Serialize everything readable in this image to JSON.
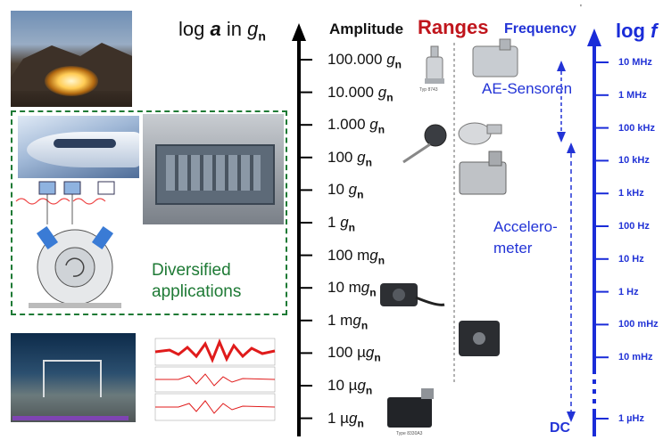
{
  "left_axis": {
    "title_prefix": "log ",
    "title_var": "a",
    "title_mid": " in ",
    "title_unit": "g",
    "title_sub": "n"
  },
  "headers": {
    "amplitude": "Amplitude",
    "ranges": "Ranges",
    "frequency": "Frequency",
    "logf_prefix": "log ",
    "logf_var": "f",
    "corner_mark": "'"
  },
  "amplitude_ticks": [
    {
      "value": "100.000 ",
      "unit": "g",
      "sub": "n"
    },
    {
      "value": "10.000 ",
      "unit": "g",
      "sub": "n"
    },
    {
      "value": "1.000 ",
      "unit": "g",
      "sub": "n"
    },
    {
      "value": "100 ",
      "unit": "g",
      "sub": "n"
    },
    {
      "value": "10 ",
      "unit": "g",
      "sub": "n"
    },
    {
      "value": "1 ",
      "unit": "g",
      "sub": "n"
    },
    {
      "value": "100 m",
      "unit": "g",
      "sub": "n"
    },
    {
      "value": "10 m",
      "unit": "g",
      "sub": "n"
    },
    {
      "value": "1 m",
      "unit": "g",
      "sub": "n"
    },
    {
      "value": "100 µ",
      "unit": "g",
      "sub": "n"
    },
    {
      "value": "10 µ",
      "unit": "g",
      "sub": "n"
    },
    {
      "value": "1 µ",
      "unit": "g",
      "sub": "n"
    }
  ],
  "frequency_ticks": [
    "10 MHz",
    "1 MHz",
    "100 kHz",
    "10 kHz",
    "1 kHz",
    "100 Hz",
    "10 Hz",
    "1 Hz",
    "100 mHz",
    "10 mHz",
    "1 µHz"
  ],
  "annotations": {
    "ae_sensors": "AE-Sensoren",
    "accelerometer_line1": "Accelero-",
    "accelerometer_line2": "meter",
    "dc": "DC",
    "applications_line1": "Diversified",
    "applications_line2": "applications"
  },
  "sensor_captions": {
    "top_sensor": "Typ 8743",
    "bottom_sensor": "Type 8330A3"
  },
  "colors": {
    "axis_black": "#000000",
    "frequency_blue": "#1a2cd8",
    "ranges_red": "#c0151c",
    "applications_green": "#1e7a35"
  }
}
